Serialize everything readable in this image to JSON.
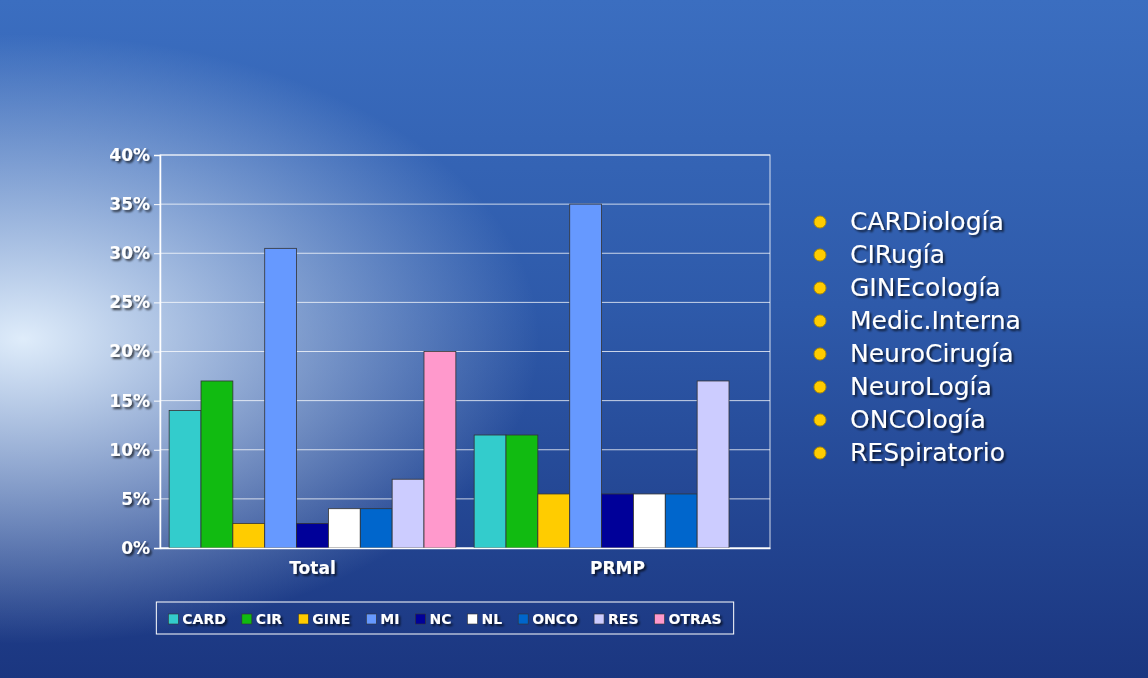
{
  "chart_data": {
    "type": "bar",
    "categories": [
      "Total",
      "PRMP"
    ],
    "series": [
      {
        "name": "CARD",
        "color": "#33cccc",
        "values": [
          14,
          11.5
        ]
      },
      {
        "name": "CIR",
        "color": "#11bb11",
        "values": [
          17,
          11.5
        ]
      },
      {
        "name": "GINE",
        "color": "#ffcc00",
        "values": [
          2.5,
          5.5
        ]
      },
      {
        "name": "MI",
        "color": "#6699ff",
        "values": [
          30.5,
          35
        ]
      },
      {
        "name": "NC",
        "color": "#000099",
        "values": [
          2.5,
          5.5
        ]
      },
      {
        "name": "NL",
        "color": "#ffffff",
        "values": [
          4,
          5.5
        ]
      },
      {
        "name": "ONCO",
        "color": "#0066cc",
        "values": [
          4,
          5.5
        ]
      },
      {
        "name": "RES",
        "color": "#ccccff",
        "values": [
          7,
          17
        ]
      },
      {
        "name": "OTRAS",
        "color": "#ff99cc",
        "values": [
          20,
          0
        ]
      }
    ],
    "ylim": [
      0,
      40
    ],
    "yticks": [
      {
        "value": 0,
        "label": "0%"
      },
      {
        "value": 5,
        "label": "5%"
      },
      {
        "value": 10,
        "label": "10%"
      },
      {
        "value": 15,
        "label": "15%"
      },
      {
        "value": 20,
        "label": "20%"
      },
      {
        "value": 25,
        "label": "25%"
      },
      {
        "value": 30,
        "label": "30%"
      },
      {
        "value": 35,
        "label": "35%"
      },
      {
        "value": 40,
        "label": "40%"
      }
    ],
    "grid": true,
    "legend": "bottom",
    "annotations": [
      "CARDiología",
      "CIRugía",
      "GINEcología",
      "Medic.Interna",
      "NeuroCirugía",
      "NeuroLogía",
      "ONCOlogía",
      "RESpiratorio"
    ]
  }
}
